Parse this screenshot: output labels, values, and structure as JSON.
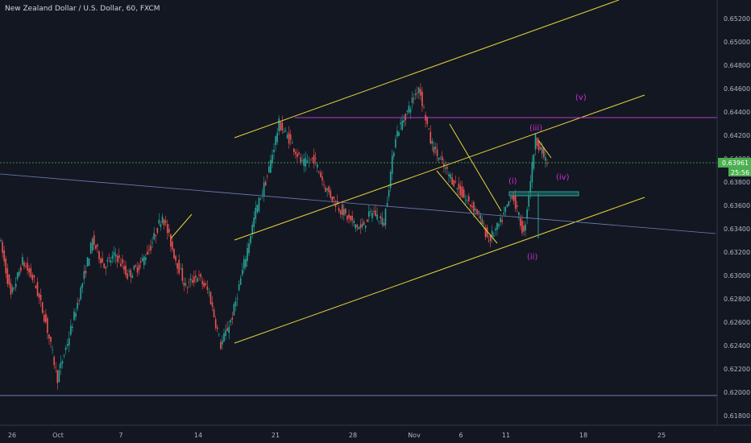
{
  "title": "New Zealand Dollar / U.S. Dollar, 60, FXCM",
  "colors": {
    "background": "#131722",
    "up": "#26a69a",
    "down": "#ef5350",
    "channel": "#e6d43a",
    "resistance": "#c037c7",
    "price_line": "#4caf50",
    "wave_label": "#d02cd6",
    "blue_line": "#6f7fb8"
  },
  "chart_data": {
    "type": "candlestick",
    "symbol": "NZDUSD",
    "timeframe": "60",
    "y_ticks": [
      "0.65200",
      "0.65000",
      "0.64800",
      "0.64600",
      "0.64400",
      "0.64200",
      "0.64000",
      "0.63800",
      "0.63600",
      "0.63400",
      "0.63200",
      "0.63000",
      "0.62800",
      "0.62600",
      "0.62400",
      "0.62200",
      "0.62000",
      "0.61800"
    ],
    "ylim": [
      0.617,
      0.6535
    ],
    "x_ticks": [
      "26",
      "Oct",
      "7",
      "14",
      "21",
      "28",
      "Nov",
      "6",
      "11",
      "18",
      "25"
    ],
    "last_price": "0.63961",
    "countdown": "25:56",
    "price_path": [
      {
        "x": "26",
        "y": 0.6334
      },
      {
        "x": "27",
        "y": 0.6282
      },
      {
        "x": "28",
        "y": 0.6312
      },
      {
        "x": "29",
        "y": 0.6295
      },
      {
        "x": "30",
        "y": 0.626
      },
      {
        "x": "Oct",
        "y": 0.6212
      },
      {
        "x": "2",
        "y": 0.6248
      },
      {
        "x": "3",
        "y": 0.6288
      },
      {
        "x": "4",
        "y": 0.633
      },
      {
        "x": "5",
        "y": 0.6308
      },
      {
        "x": "7",
        "y": 0.6318
      },
      {
        "x": "8",
        "y": 0.63
      },
      {
        "x": "9",
        "y": 0.6308
      },
      {
        "x": "10",
        "y": 0.6325
      },
      {
        "x": "11",
        "y": 0.6352
      },
      {
        "x": "12",
        "y": 0.6318
      },
      {
        "x": "13",
        "y": 0.629
      },
      {
        "x": "14",
        "y": 0.63
      },
      {
        "x": "15",
        "y": 0.6285
      },
      {
        "x": "16",
        "y": 0.624
      },
      {
        "x": "17",
        "y": 0.6265
      },
      {
        "x": "18",
        "y": 0.631
      },
      {
        "x": "19",
        "y": 0.6355
      },
      {
        "x": "20",
        "y": 0.6385
      },
      {
        "x": "21",
        "y": 0.643
      },
      {
        "x": "22",
        "y": 0.6415
      },
      {
        "x": "23",
        "y": 0.6395
      },
      {
        "x": "24",
        "y": 0.64
      },
      {
        "x": "25",
        "y": 0.6375
      },
      {
        "x": "26b",
        "y": 0.636
      },
      {
        "x": "28",
        "y": 0.6348
      },
      {
        "x": "29",
        "y": 0.634
      },
      {
        "x": "30b",
        "y": 0.6355
      },
      {
        "x": "31",
        "y": 0.6345
      },
      {
        "x": "Nov",
        "y": 0.642
      },
      {
        "x": "2",
        "y": 0.644
      },
      {
        "x": "3",
        "y": 0.6462
      },
      {
        "x": "4",
        "y": 0.6415
      },
      {
        "x": "5",
        "y": 0.6395
      },
      {
        "x": "6",
        "y": 0.638
      },
      {
        "x": "7",
        "y": 0.6365
      },
      {
        "x": "8",
        "y": 0.6355
      },
      {
        "x": "9",
        "y": 0.633
      },
      {
        "x": "10",
        "y": 0.6345
      },
      {
        "x": "11",
        "y": 0.637
      },
      {
        "x": "12",
        "y": 0.6335
      },
      {
        "x": "13",
        "y": 0.6418
      },
      {
        "x": "14",
        "y": 0.6396
      }
    ],
    "horizontal_levels": [
      {
        "name": "resistance",
        "y": 0.64368
      },
      {
        "name": "last-price",
        "y": 0.63961
      },
      {
        "name": "support",
        "y": 0.6196
      }
    ],
    "wave_labels": [
      {
        "text": "(i)",
        "y": 0.6381
      },
      {
        "text": "(ii)",
        "y": 0.6315
      },
      {
        "text": "(iii)",
        "y": 0.6424
      },
      {
        "text": "(iv)",
        "y": 0.638
      },
      {
        "text": "(v)",
        "y": 0.6449
      }
    ]
  }
}
